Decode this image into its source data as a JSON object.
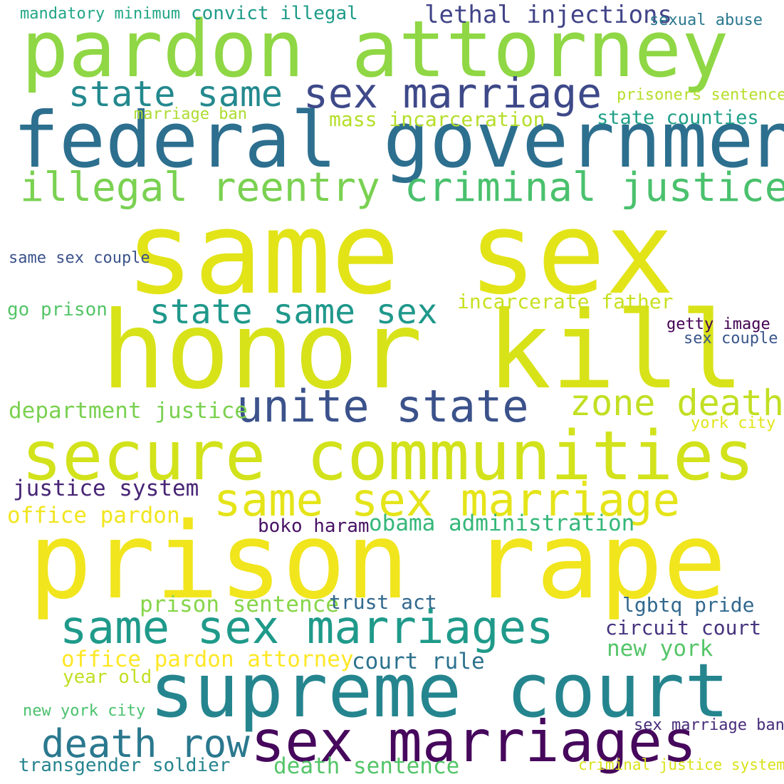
{
  "words": [
    {
      "text": "same sex",
      "color": "#e2e418"
    },
    {
      "text": "honor kill",
      "color": "#d8e219"
    },
    {
      "text": "prison rape",
      "color": "#f1e51d"
    },
    {
      "text": "federal government",
      "color": "#2d6f8e"
    },
    {
      "text": "pardon attorney",
      "color": "#8fd744"
    },
    {
      "text": "secure communities",
      "color": "#d2e21b"
    },
    {
      "text": "supreme court",
      "color": "#25858e"
    },
    {
      "text": "same sex marriages",
      "color": "#1f9a8a"
    },
    {
      "text": "sex marriages",
      "color": "#46085c"
    },
    {
      "text": "same sex marriage",
      "color": "#e5e419"
    },
    {
      "text": "unite state",
      "color": "#3b528b"
    },
    {
      "text": "criminal justice",
      "color": "#4ac16d"
    },
    {
      "text": "illegal reentry",
      "color": "#7ad151"
    },
    {
      "text": "sex marriage",
      "color": "#3e4989"
    },
    {
      "text": "state same",
      "color": "#23898e"
    },
    {
      "text": "zone death",
      "color": "#c2df23"
    },
    {
      "text": "state same sex",
      "color": "#1f988b"
    },
    {
      "text": "death row",
      "color": "#2a788e"
    },
    {
      "text": "lethal injections",
      "color": "#414487"
    },
    {
      "text": "department justice",
      "color": "#7ad151"
    },
    {
      "text": "justice system",
      "color": "#482576"
    },
    {
      "text": "office pardon",
      "color": "#f1e51d"
    },
    {
      "text": "obama administration",
      "color": "#35b779"
    },
    {
      "text": "prison sentence",
      "color": "#86d549"
    },
    {
      "text": "office pardon attorney",
      "color": "#fde725"
    },
    {
      "text": "court rule",
      "color": "#2c728e"
    },
    {
      "text": "new york",
      "color": "#54c568"
    },
    {
      "text": "death sentence",
      "color": "#54c568"
    },
    {
      "text": "transgender soldier",
      "color": "#25848e"
    },
    {
      "text": "trust act",
      "color": "#31688e"
    },
    {
      "text": "lgbtq pride",
      "color": "#31688e"
    },
    {
      "text": "circuit court",
      "color": "#46337e"
    },
    {
      "text": "boko haram",
      "color": "#471164"
    },
    {
      "text": "mass incarceration",
      "color": "#b5de2b"
    },
    {
      "text": "incarcerate father",
      "color": "#c8e020"
    },
    {
      "text": "state counties",
      "color": "#1fa088"
    },
    {
      "text": "convict illegal",
      "color": "#1e9c89"
    },
    {
      "text": "mandatory minimum",
      "color": "#21a685"
    },
    {
      "text": "sexual abuse",
      "color": "#2a788e"
    },
    {
      "text": "prisoners sentence",
      "color": "#b5de2b"
    },
    {
      "text": "marriage ban",
      "color": "#addc30"
    },
    {
      "text": "same sex couple",
      "color": "#3b528b"
    },
    {
      "text": "go prison",
      "color": "#54c568"
    },
    {
      "text": "getty image",
      "color": "#440154"
    },
    {
      "text": "sex couple",
      "color": "#39568c"
    },
    {
      "text": "york city",
      "color": "#e2e418"
    },
    {
      "text": "year old",
      "color": "#c2df23"
    },
    {
      "text": "new york city",
      "color": "#4ac16d"
    },
    {
      "text": "sex marriage ban",
      "color": "#472c7a"
    },
    {
      "text": "criminal justice system",
      "color": "#d8e219"
    }
  ]
}
